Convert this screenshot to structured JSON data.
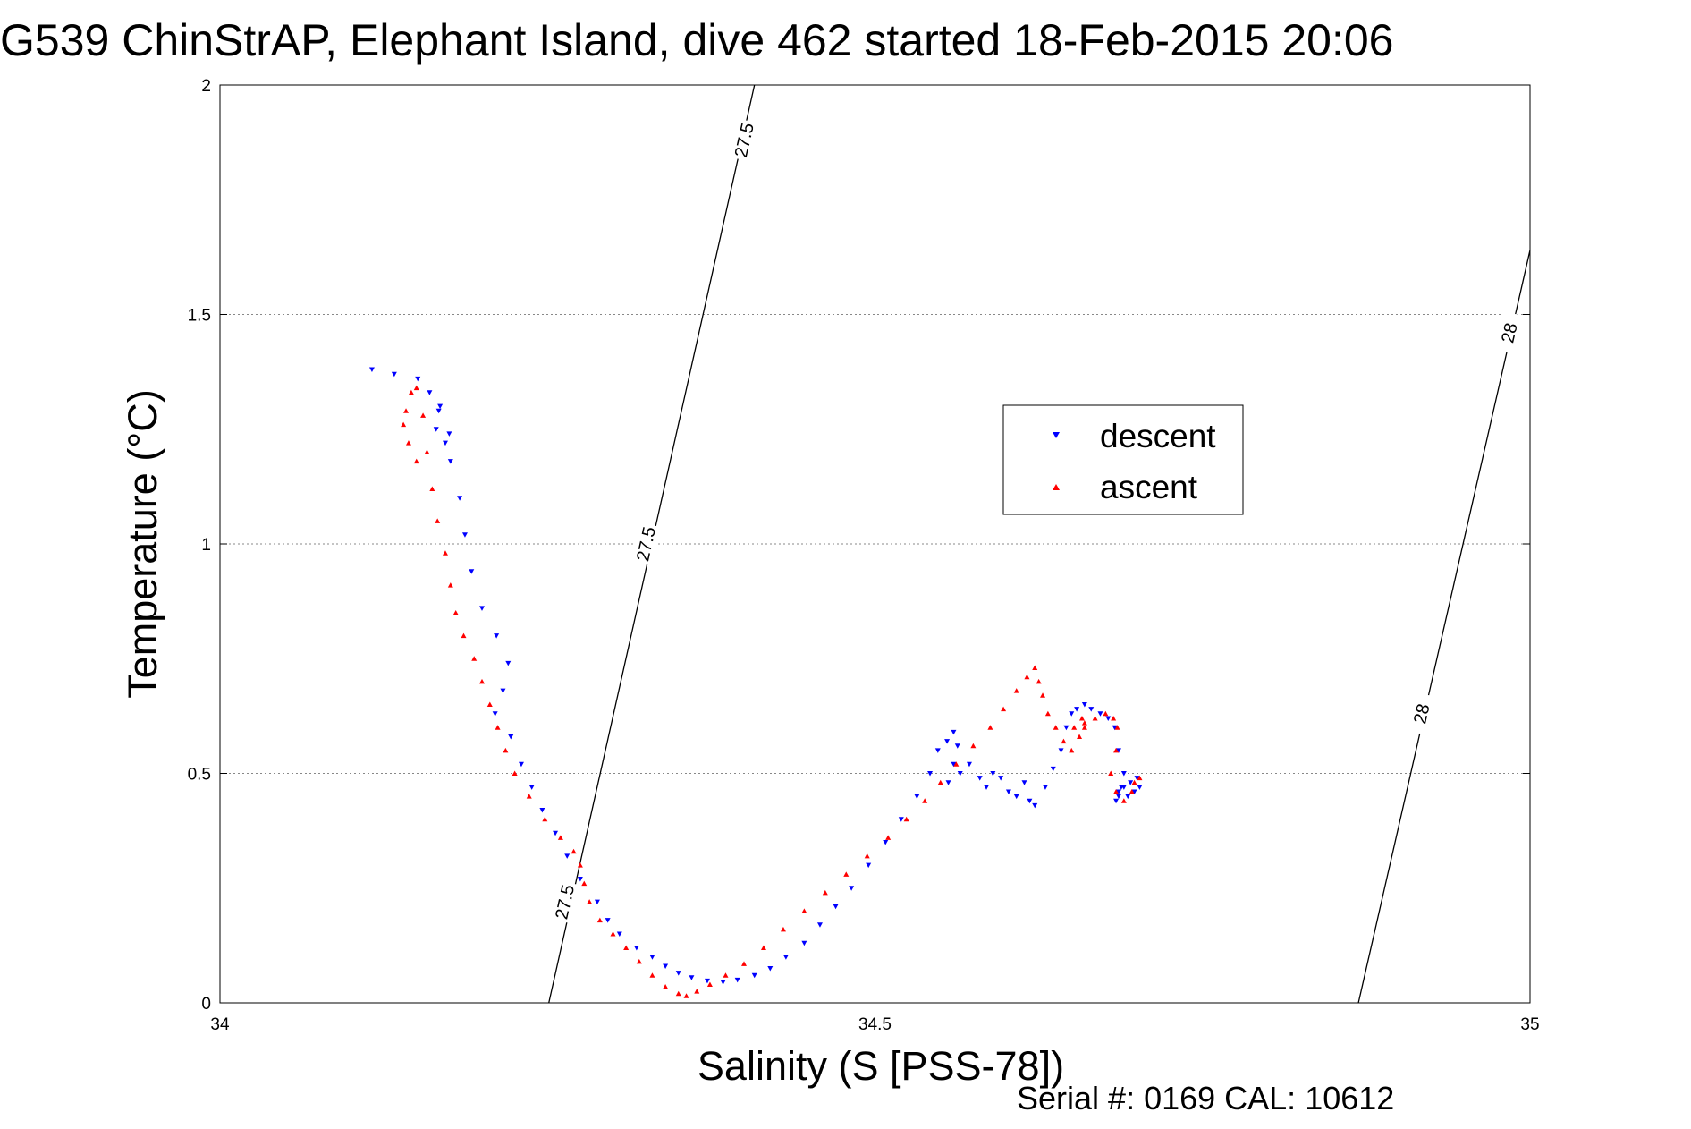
{
  "chart_data": {
    "type": "scatter",
    "title": "G539 ChinStrAP, Elephant Island, dive 462 started 18-Feb-2015 20:06",
    "xlabel": "Salinity (S [PSS-78])",
    "ylabel": "Temperature (°C)",
    "xlim": [
      34,
      35
    ],
    "ylim": [
      0,
      2
    ],
    "x_ticks": [
      34,
      34.5,
      35
    ],
    "x_tick_labels": [
      "34",
      "34.5",
      "35"
    ],
    "y_ticks": [
      0,
      0.5,
      1,
      1.5,
      2
    ],
    "y_tick_labels": [
      "0",
      "0.5",
      "1",
      "1.5",
      "2"
    ],
    "grid": true,
    "legend_position": "upper-right",
    "footer": "Serial #: 0169 CAL: 10612",
    "contours": [
      {
        "label": "27.5",
        "points": [
          [
            34.251,
            0
          ],
          [
            34.408,
            2
          ]
        ],
        "label_positions": [
          [
            34.263,
            0.22
          ],
          [
            34.325,
            1.0
          ],
          [
            34.4,
            1.88
          ]
        ]
      },
      {
        "label": "28",
        "points": [
          [
            34.869,
            0
          ],
          [
            35,
            1.64
          ]
        ],
        "label_positions": [
          [
            34.917,
            0.63
          ],
          [
            34.984,
            1.46
          ]
        ]
      }
    ],
    "series": [
      {
        "name": "descent",
        "color": "#0000ff",
        "marker": "triangle-down",
        "x": [
          34.116,
          34.133,
          34.151,
          34.16,
          34.168,
          34.175,
          34.172,
          34.165,
          34.167,
          34.176,
          34.183,
          34.187,
          34.192,
          34.2,
          34.211,
          34.22,
          34.216,
          34.21,
          34.222,
          34.23,
          34.238,
          34.246,
          34.256,
          34.265,
          34.275,
          34.288,
          34.296,
          34.305,
          34.318,
          34.33,
          34.34,
          34.35,
          34.36,
          34.372,
          34.384,
          34.395,
          34.408,
          34.42,
          34.432,
          34.446,
          34.458,
          34.47,
          34.482,
          34.495,
          34.508,
          34.52,
          34.532,
          34.542,
          34.548,
          34.555,
          34.56,
          34.563,
          34.56,
          34.556,
          34.565,
          34.572,
          34.58,
          34.585,
          34.59,
          34.596,
          34.602,
          34.608,
          34.614,
          34.618,
          34.622,
          34.63,
          34.636,
          34.642,
          34.646,
          34.65,
          34.654,
          34.66,
          34.665,
          34.672,
          34.678,
          34.683,
          34.686,
          34.69,
          34.688,
          34.686,
          34.684,
          34.686,
          34.69,
          34.695,
          34.7,
          34.702,
          34.698,
          34.693
        ],
        "y": [
          1.38,
          1.37,
          1.36,
          1.33,
          1.3,
          1.24,
          1.22,
          1.25,
          1.29,
          1.18,
          1.1,
          1.02,
          0.94,
          0.86,
          0.8,
          0.74,
          0.68,
          0.63,
          0.58,
          0.52,
          0.47,
          0.42,
          0.37,
          0.32,
          0.27,
          0.22,
          0.18,
          0.15,
          0.12,
          0.1,
          0.08,
          0.065,
          0.055,
          0.048,
          0.045,
          0.05,
          0.06,
          0.075,
          0.1,
          0.13,
          0.17,
          0.21,
          0.25,
          0.3,
          0.35,
          0.4,
          0.45,
          0.5,
          0.55,
          0.57,
          0.59,
          0.56,
          0.52,
          0.48,
          0.5,
          0.52,
          0.49,
          0.47,
          0.5,
          0.49,
          0.46,
          0.45,
          0.48,
          0.44,
          0.43,
          0.47,
          0.51,
          0.55,
          0.6,
          0.63,
          0.64,
          0.65,
          0.64,
          0.63,
          0.62,
          0.6,
          0.55,
          0.5,
          0.47,
          0.45,
          0.44,
          0.46,
          0.47,
          0.48,
          0.49,
          0.47,
          0.46,
          0.45
        ]
      },
      {
        "name": "ascent",
        "color": "#ff0000",
        "marker": "triangle-up",
        "x": [
          34.15,
          34.144,
          34.14,
          34.142,
          34.146,
          34.15,
          34.155,
          34.158,
          34.162,
          34.166,
          34.172,
          34.176,
          34.18,
          34.186,
          34.194,
          34.2,
          34.206,
          34.212,
          34.218,
          34.225,
          34.236,
          34.248,
          34.26,
          34.27,
          34.275,
          34.278,
          34.282,
          34.29,
          34.3,
          34.31,
          34.32,
          34.33,
          34.34,
          34.35,
          34.356,
          34.364,
          34.374,
          34.386,
          34.4,
          34.415,
          34.43,
          34.446,
          34.462,
          34.478,
          34.494,
          34.51,
          34.524,
          34.538,
          34.55,
          34.562,
          34.575,
          34.588,
          34.598,
          34.608,
          34.616,
          34.622,
          34.625,
          34.628,
          34.632,
          34.638,
          34.644,
          34.65,
          34.656,
          34.66,
          34.658,
          34.652,
          34.66,
          34.668,
          34.676,
          34.682,
          34.685,
          34.684,
          34.68,
          34.684,
          34.69,
          34.696,
          34.702,
          34.698
        ],
        "y": [
          1.18,
          1.22,
          1.26,
          1.29,
          1.33,
          1.34,
          1.28,
          1.2,
          1.12,
          1.05,
          0.98,
          0.91,
          0.85,
          0.8,
          0.75,
          0.7,
          0.65,
          0.6,
          0.55,
          0.5,
          0.45,
          0.4,
          0.36,
          0.33,
          0.3,
          0.26,
          0.22,
          0.18,
          0.15,
          0.12,
          0.09,
          0.06,
          0.035,
          0.02,
          0.015,
          0.025,
          0.04,
          0.06,
          0.085,
          0.12,
          0.16,
          0.2,
          0.24,
          0.28,
          0.32,
          0.36,
          0.4,
          0.44,
          0.48,
          0.52,
          0.56,
          0.6,
          0.64,
          0.68,
          0.71,
          0.73,
          0.7,
          0.67,
          0.63,
          0.6,
          0.57,
          0.55,
          0.58,
          0.6,
          0.62,
          0.6,
          0.61,
          0.62,
          0.63,
          0.62,
          0.6,
          0.55,
          0.5,
          0.46,
          0.44,
          0.46,
          0.49,
          0.48
        ]
      }
    ]
  }
}
